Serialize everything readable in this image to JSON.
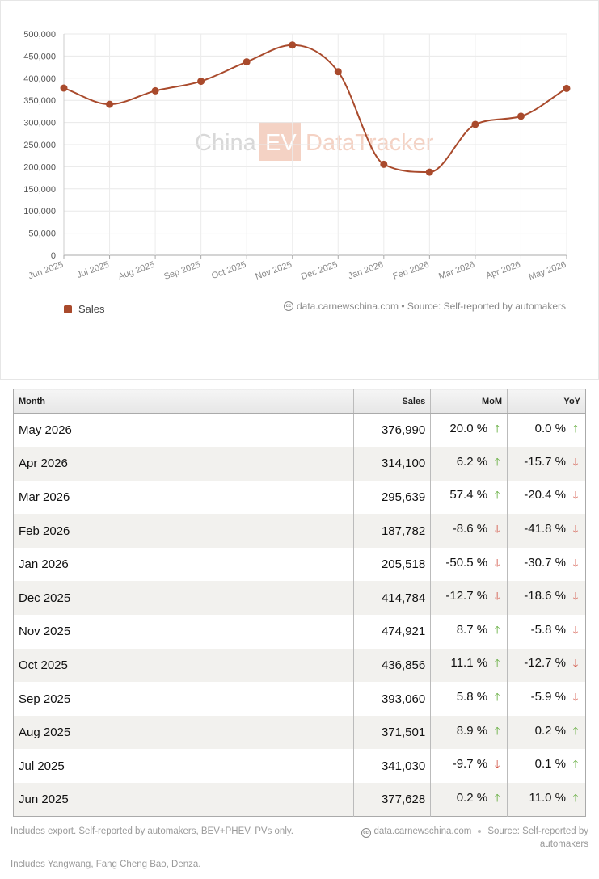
{
  "chart_data": {
    "type": "line",
    "categories": [
      "Jun 2025",
      "Jul 2025",
      "Aug 2025",
      "Sep 2025",
      "Oct 2025",
      "Nov 2025",
      "Dec 2025",
      "Jan 2026",
      "Feb 2026",
      "Mar 2026",
      "Apr 2026",
      "May 2026"
    ],
    "series": [
      {
        "name": "Sales",
        "values": [
          377628,
          341030,
          371501,
          393060,
          436856,
          474921,
          414784,
          205518,
          187782,
          295639,
          314100,
          376990
        ]
      }
    ],
    "yticks": [
      "0",
      "50,000",
      "100,000",
      "150,000",
      "200,000",
      "250,000",
      "300,000",
      "350,000",
      "400,000",
      "450,000",
      "500,000"
    ],
    "ylim": [
      0,
      500000
    ],
    "grid": true,
    "legend_position": "bottom-left",
    "color": "#a94a2c"
  },
  "watermark": {
    "part1": "China",
    "part2": "EV",
    "part3": "DataTracker"
  },
  "chart_source": "data.carnewschina.com • Source: Self-reported by automakers",
  "cc_label": "cc",
  "table": {
    "headers": {
      "month": "Month",
      "sales": "Sales",
      "mom": "MoM",
      "yoy": "YoY"
    },
    "rows": [
      {
        "month": "May 2026",
        "sales": "376,990",
        "mom": "20.0 %",
        "mom_dir": "up",
        "yoy": "0.0 %",
        "yoy_dir": "up"
      },
      {
        "month": "Apr 2026",
        "sales": "314,100",
        "mom": "6.2 %",
        "mom_dir": "up",
        "yoy": "-15.7 %",
        "yoy_dir": "down"
      },
      {
        "month": "Mar 2026",
        "sales": "295,639",
        "mom": "57.4 %",
        "mom_dir": "up",
        "yoy": "-20.4 %",
        "yoy_dir": "down"
      },
      {
        "month": "Feb 2026",
        "sales": "187,782",
        "mom": "-8.6 %",
        "mom_dir": "down",
        "yoy": "-41.8 %",
        "yoy_dir": "down"
      },
      {
        "month": "Jan 2026",
        "sales": "205,518",
        "mom": "-50.5 %",
        "mom_dir": "down",
        "yoy": "-30.7 %",
        "yoy_dir": "down"
      },
      {
        "month": "Dec 2025",
        "sales": "414,784",
        "mom": "-12.7 %",
        "mom_dir": "down",
        "yoy": "-18.6 %",
        "yoy_dir": "down"
      },
      {
        "month": "Nov 2025",
        "sales": "474,921",
        "mom": "8.7 %",
        "mom_dir": "up",
        "yoy": "-5.8 %",
        "yoy_dir": "down"
      },
      {
        "month": "Oct 2025",
        "sales": "436,856",
        "mom": "11.1 %",
        "mom_dir": "up",
        "yoy": "-12.7 %",
        "yoy_dir": "down"
      },
      {
        "month": "Sep 2025",
        "sales": "393,060",
        "mom": "5.8 %",
        "mom_dir": "up",
        "yoy": "-5.9 %",
        "yoy_dir": "down"
      },
      {
        "month": "Aug 2025",
        "sales": "371,501",
        "mom": "8.9 %",
        "mom_dir": "up",
        "yoy": "0.2 %",
        "yoy_dir": "up"
      },
      {
        "month": "Jul 2025",
        "sales": "341,030",
        "mom": "-9.7 %",
        "mom_dir": "down",
        "yoy": "0.1 %",
        "yoy_dir": "up"
      },
      {
        "month": "Jun 2025",
        "sales": "377,628",
        "mom": "0.2 %",
        "mom_dir": "up",
        "yoy": "11.0 %",
        "yoy_dir": "up"
      }
    ],
    "arrow_up": "🡑",
    "arrow_down": "🡓",
    "up_color": "#5aa832",
    "down_color": "#d04a3a"
  },
  "footer": {
    "note1": "Includes export. Self-reported by automakers, BEV+PHEV, PVs only.",
    "note2": "Includes Yangwang, Fang Cheng Bao, Denza.",
    "site": "data.carnewschina.com",
    "source": "Source: Self-reported by automakers"
  }
}
